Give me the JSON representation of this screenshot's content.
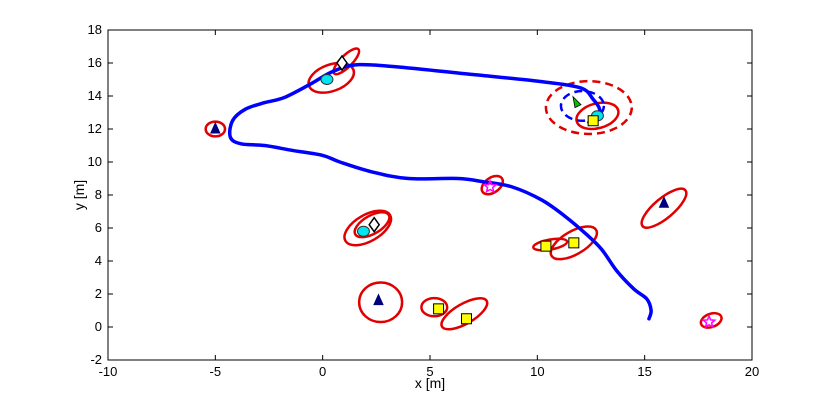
{
  "chart_data": {
    "type": "scatter",
    "title": "",
    "xlabel": "x [m]",
    "ylabel": "y [m]",
    "xlim": [
      -10,
      20
    ],
    "ylim": [
      -2,
      18
    ],
    "xticks": [
      -10,
      -5,
      0,
      5,
      10,
      15,
      20
    ],
    "yticks": [
      -2,
      0,
      2,
      4,
      6,
      8,
      10,
      12,
      14,
      16,
      18
    ],
    "xtick_labels": [
      "-10",
      "-5",
      "0",
      "5",
      "10",
      "15",
      "20"
    ],
    "ytick_labels": [
      "-2",
      "0",
      "2",
      "4",
      "6",
      "8",
      "10",
      "12",
      "14",
      "16",
      "18"
    ],
    "grid": false,
    "trajectory": {
      "color": "#0000ff",
      "points": [
        [
          15.2,
          0.5
        ],
        [
          15.3,
          1.0
        ],
        [
          15.1,
          1.7
        ],
        [
          14.5,
          2.3
        ],
        [
          13.7,
          3.4
        ],
        [
          13.0,
          4.7
        ],
        [
          12.3,
          5.6
        ],
        [
          11.3,
          6.7
        ],
        [
          10.2,
          7.7
        ],
        [
          8.8,
          8.5
        ],
        [
          7.5,
          8.8
        ],
        [
          6.3,
          9.0
        ],
        [
          4.0,
          9.0
        ],
        [
          2.3,
          9.4
        ],
        [
          0.8,
          10.0
        ],
        [
          0.0,
          10.4
        ],
        [
          -1.4,
          10.7
        ],
        [
          -2.7,
          11.0
        ],
        [
          -3.8,
          11.1
        ],
        [
          -4.3,
          11.5
        ],
        [
          -4.2,
          12.5
        ],
        [
          -3.6,
          13.2
        ],
        [
          -2.7,
          13.6
        ],
        [
          -1.8,
          13.9
        ],
        [
          -0.6,
          14.7
        ],
        [
          0.5,
          15.5
        ],
        [
          1.7,
          15.9
        ],
        [
          4.0,
          15.7
        ],
        [
          7.0,
          15.3
        ],
        [
          10.0,
          14.9
        ],
        [
          12.0,
          14.5
        ],
        [
          12.6,
          13.8
        ],
        [
          12.9,
          13.2
        ],
        [
          12.8,
          12.6
        ],
        [
          12.4,
          12.4
        ]
      ]
    },
    "ellipses": [
      {
        "cx": 0.4,
        "cy": 15.1,
        "rx": 1.1,
        "ry": 0.8,
        "angle": 20,
        "color": "#e00000",
        "dashed": false
      },
      {
        "cx": 1.1,
        "cy": 16.1,
        "rx": 0.8,
        "ry": 0.35,
        "angle": 45,
        "color": "#e00000",
        "dashed": false
      },
      {
        "cx": -5.0,
        "cy": 12.0,
        "rx": 0.45,
        "ry": 0.45,
        "angle": 0,
        "color": "#e00000",
        "dashed": false
      },
      {
        "cx": 2.1,
        "cy": 6.0,
        "rx": 1.2,
        "ry": 0.8,
        "angle": 30,
        "color": "#e00000",
        "dashed": false
      },
      {
        "cx": 2.3,
        "cy": 6.2,
        "rx": 0.9,
        "ry": 0.55,
        "angle": 30,
        "color": "#e00000",
        "dashed": false
      },
      {
        "cx": 2.7,
        "cy": 1.5,
        "rx": 1.0,
        "ry": 1.2,
        "angle": 0,
        "color": "#e00000",
        "dashed": false
      },
      {
        "cx": 5.2,
        "cy": 1.2,
        "rx": 0.6,
        "ry": 0.55,
        "angle": 0,
        "color": "#e00000",
        "dashed": false
      },
      {
        "cx": 6.6,
        "cy": 0.8,
        "rx": 1.2,
        "ry": 0.6,
        "angle": 30,
        "color": "#e00000",
        "dashed": false
      },
      {
        "cx": 7.9,
        "cy": 8.6,
        "rx": 0.55,
        "ry": 0.45,
        "angle": 35,
        "color": "#e00000",
        "dashed": false
      },
      {
        "cx": 10.6,
        "cy": 5.0,
        "rx": 0.8,
        "ry": 0.3,
        "angle": 10,
        "color": "#e00000",
        "dashed": false
      },
      {
        "cx": 11.7,
        "cy": 5.1,
        "rx": 1.2,
        "ry": 0.7,
        "angle": 30,
        "color": "#e00000",
        "dashed": false
      },
      {
        "cx": 12.8,
        "cy": 12.8,
        "rx": 1.0,
        "ry": 0.75,
        "angle": 15,
        "color": "#e00000",
        "dashed": false
      },
      {
        "cx": 12.4,
        "cy": 13.3,
        "rx": 2.0,
        "ry": 1.6,
        "angle": 0,
        "color": "#e00000",
        "dashed": true
      },
      {
        "cx": 12.1,
        "cy": 13.4,
        "rx": 1.0,
        "ry": 0.9,
        "angle": 0,
        "color": "#0000ff",
        "dashed": true
      },
      {
        "cx": 15.9,
        "cy": 7.2,
        "rx": 1.3,
        "ry": 0.6,
        "angle": 40,
        "color": "#e00000",
        "dashed": false
      },
      {
        "cx": 18.1,
        "cy": 0.4,
        "rx": 0.5,
        "ry": 0.4,
        "angle": 20,
        "color": "#e00000",
        "dashed": false
      }
    ],
    "landmarks": [
      {
        "shape": "triangle",
        "x": -5.0,
        "y": 12.0,
        "fill": "#00007f"
      },
      {
        "shape": "triangle",
        "x": 2.6,
        "y": 1.6,
        "fill": "#00007f"
      },
      {
        "shape": "triangle",
        "x": 15.9,
        "y": 7.5,
        "fill": "#00007f"
      },
      {
        "shape": "circle",
        "x": 0.2,
        "y": 15.0,
        "fill": "#00e5ee"
      },
      {
        "shape": "circle",
        "x": 1.9,
        "y": 5.8,
        "fill": "#00e5ee"
      },
      {
        "shape": "circle",
        "x": 12.8,
        "y": 12.8,
        "fill": "#00e5ee"
      },
      {
        "shape": "diamond",
        "x": 0.9,
        "y": 16.0,
        "fill": "#ffffff"
      },
      {
        "shape": "diamond",
        "x": 2.4,
        "y": 6.2,
        "fill": "#ffffff"
      },
      {
        "shape": "square",
        "x": 5.4,
        "y": 1.1,
        "fill": "#ffff00"
      },
      {
        "shape": "square",
        "x": 6.7,
        "y": 0.5,
        "fill": "#ffff00"
      },
      {
        "shape": "square",
        "x": 10.4,
        "y": 4.9,
        "fill": "#ffff00"
      },
      {
        "shape": "square",
        "x": 11.7,
        "y": 5.1,
        "fill": "#ffff00"
      },
      {
        "shape": "square",
        "x": 12.6,
        "y": 12.5,
        "fill": "#ffff00"
      },
      {
        "shape": "star",
        "x": 7.8,
        "y": 8.5,
        "fill": "#ff00ff"
      },
      {
        "shape": "star",
        "x": 18.0,
        "y": 0.3,
        "fill": "#ff00ff"
      }
    ],
    "robot_heading": {
      "x": 11.8,
      "y": 13.6,
      "color": "#00c000"
    }
  }
}
